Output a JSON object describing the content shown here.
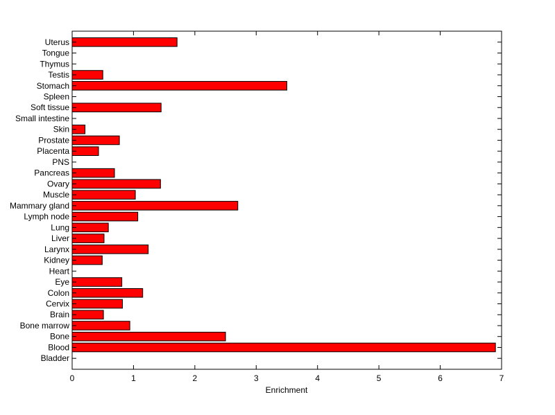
{
  "chart_data": {
    "type": "bar",
    "orientation": "horizontal",
    "categories": [
      "Bladder",
      "Blood",
      "Bone",
      "Bone marrow",
      "Brain",
      "Cervix",
      "Colon",
      "Eye",
      "Heart",
      "Kidney",
      "Larynx",
      "Liver",
      "Lung",
      "Lymph node",
      "Mammary gland",
      "Muscle",
      "Ovary",
      "Pancreas",
      "PNS",
      "Placenta",
      "Prostate",
      "Skin",
      "Small intestine",
      "Soft tissue",
      "Spleen",
      "Stomach",
      "Testis",
      "Thymus",
      "Tongue",
      "Uterus"
    ],
    "values": [
      0,
      6.9,
      2.5,
      0.94,
      0.51,
      0.82,
      1.15,
      0.81,
      0,
      0.49,
      1.24,
      0.52,
      0.59,
      1.07,
      2.7,
      1.03,
      1.44,
      0.69,
      0,
      0.43,
      0.77,
      0.21,
      0,
      1.45,
      0,
      3.5,
      0.5,
      0,
      0,
      1.71
    ],
    "xlabel": "Enrichment",
    "ylabel": "",
    "title": "",
    "xlim": [
      0,
      7
    ],
    "xticks": [
      0,
      1,
      2,
      3,
      4,
      5,
      6,
      7
    ],
    "bar_color": "#ff0000",
    "grid": false
  }
}
